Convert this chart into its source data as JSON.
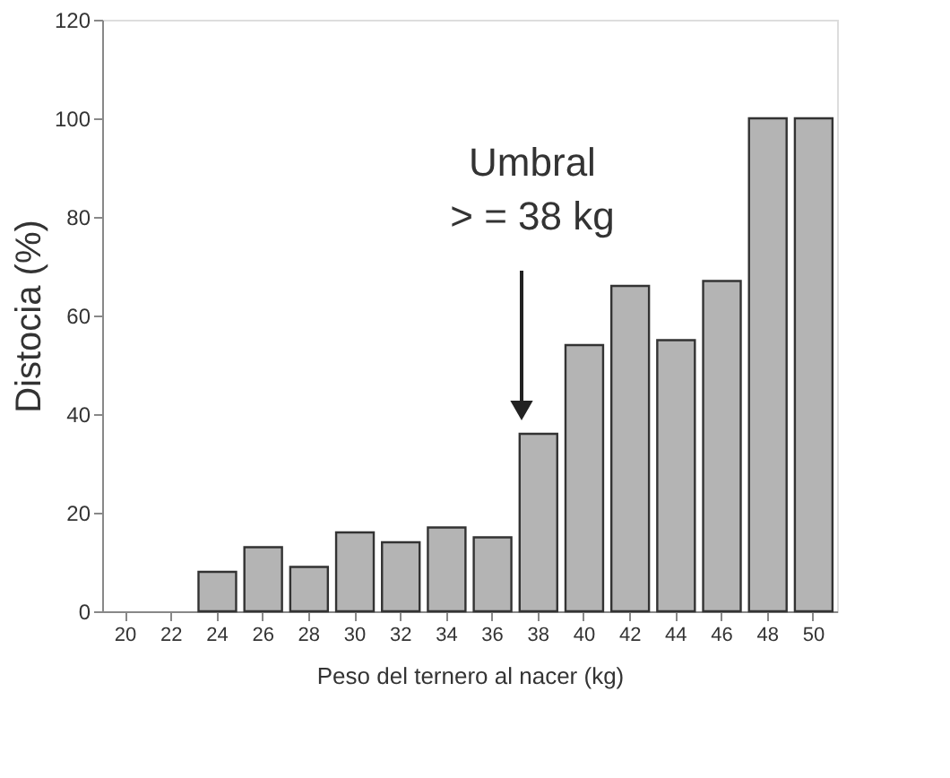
{
  "chart_data": {
    "type": "bar",
    "categories": [
      "20",
      "22",
      "24",
      "26",
      "28",
      "30",
      "32",
      "34",
      "36",
      "38",
      "40",
      "42",
      "44",
      "46",
      "48",
      "50"
    ],
    "values": [
      null,
      null,
      8,
      13,
      9,
      16,
      14,
      17,
      15,
      36,
      54,
      66,
      55,
      67,
      100,
      100
    ],
    "color": "#b4b4b4",
    "xlabel": "Peso del ternero al nacer (kg)",
    "ylabel": "Distocia (%)",
    "ylim": [
      0,
      120
    ],
    "yticks": [
      0,
      20,
      40,
      60,
      80,
      100,
      120
    ],
    "annotations": [
      "Umbral\n> = 38 kg"
    ],
    "grid": false
  }
}
